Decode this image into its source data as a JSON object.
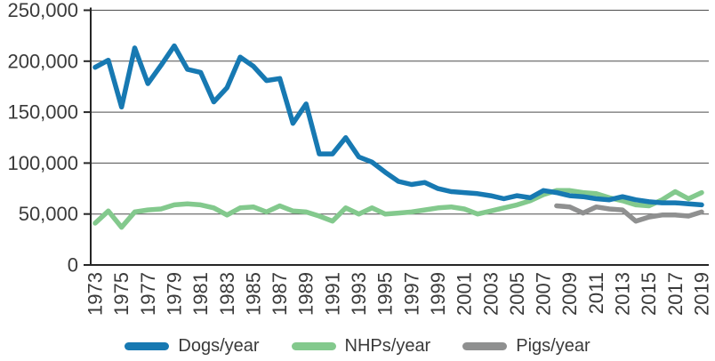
{
  "chart_data": {
    "type": "line",
    "title": "",
    "xlabel": "",
    "ylabel": "",
    "years_start": 1973,
    "years_end": 2019,
    "x_tick_years": [
      1973,
      1975,
      1977,
      1979,
      1981,
      1983,
      1985,
      1987,
      1989,
      1991,
      1993,
      1995,
      1997,
      1999,
      2001,
      2003,
      2005,
      2007,
      2009,
      2011,
      2013,
      2015,
      2017,
      2019
    ],
    "y_ticks": [
      0,
      50000,
      100000,
      150000,
      200000,
      250000
    ],
    "ylim": [
      0,
      250000
    ],
    "grid": "horizontal",
    "legend_position": "bottom-center",
    "axis_color": "#262626",
    "gridline_color": "#4d4d4d",
    "tick_label_color": "#3a3a3a",
    "series": [
      {
        "id": "dogs",
        "name": "Dogs/year",
        "color": "#1779b2",
        "values": [
          194000,
          201000,
          155000,
          213000,
          178000,
          196000,
          215000,
          192000,
          189000,
          160000,
          174000,
          204000,
          195000,
          181000,
          183000,
          139000,
          158000,
          109000,
          109000,
          125000,
          106000,
          101000,
          91000,
          82000,
          79000,
          81000,
          75000,
          72000,
          71000,
          70000,
          68000,
          65000,
          68000,
          66000,
          73000,
          71000,
          68000,
          67000,
          65000,
          64000,
          67000,
          64000,
          62000,
          61000,
          61000,
          60000,
          59000
        ]
      },
      {
        "id": "nhps",
        "name": "NHPs/year",
        "color": "#83c98d",
        "values": [
          41000,
          53000,
          37000,
          52000,
          54000,
          55000,
          59000,
          60000,
          59000,
          56000,
          49000,
          56000,
          57000,
          52000,
          58000,
          53000,
          52000,
          48000,
          43000,
          56000,
          50000,
          56000,
          50000,
          51000,
          52000,
          54000,
          56000,
          57000,
          55000,
          50000,
          53000,
          56000,
          59000,
          63000,
          69000,
          73000,
          73000,
          71000,
          70000,
          66000,
          63000,
          59000,
          58000,
          64000,
          72000,
          65000,
          71000
        ]
      },
      {
        "id": "pigs",
        "name": "Pigs/year",
        "color": "#8f9090",
        "values": [
          null,
          null,
          null,
          null,
          null,
          null,
          null,
          null,
          null,
          null,
          null,
          null,
          null,
          null,
          null,
          null,
          null,
          null,
          null,
          null,
          null,
          null,
          null,
          null,
          null,
          null,
          null,
          null,
          null,
          null,
          null,
          null,
          null,
          null,
          null,
          58000,
          57000,
          51000,
          57000,
          55000,
          54000,
          43000,
          47000,
          49000,
          49000,
          48000,
          52000
        ]
      }
    ]
  }
}
